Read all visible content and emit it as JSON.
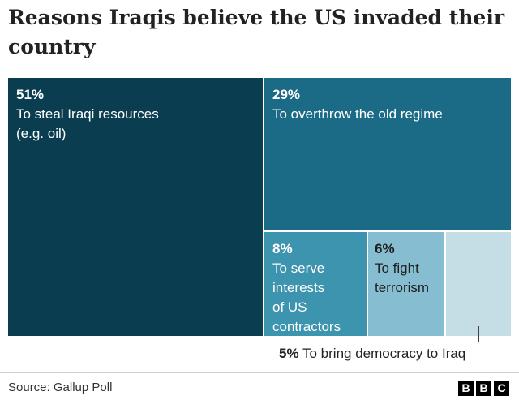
{
  "chart_data": {
    "type": "treemap",
    "title": "Reasons Iraqis believe the US invaded their country",
    "items": [
      {
        "value": 51,
        "value_label": "51%",
        "label": "To steal Iraqi resources\n(e.g. oil)",
        "color": "#0a3d4f"
      },
      {
        "value": 29,
        "value_label": "29%",
        "label": "To overthrow the old regime",
        "color": "#1b6a86"
      },
      {
        "value": 8,
        "value_label": "8%",
        "label": "To serve\ninterests\nof US\ncontractors",
        "color": "#3d94ae"
      },
      {
        "value": 6,
        "value_label": "6%",
        "label": "To fight\nterrorism",
        "color": "#86bdd0"
      },
      {
        "value": 5,
        "value_label": "5%",
        "label": "To bring democracy to Iraq",
        "color": "#c5dde5"
      }
    ]
  },
  "source": "Source: Gallup Poll",
  "logo": [
    "B",
    "B",
    "C"
  ]
}
